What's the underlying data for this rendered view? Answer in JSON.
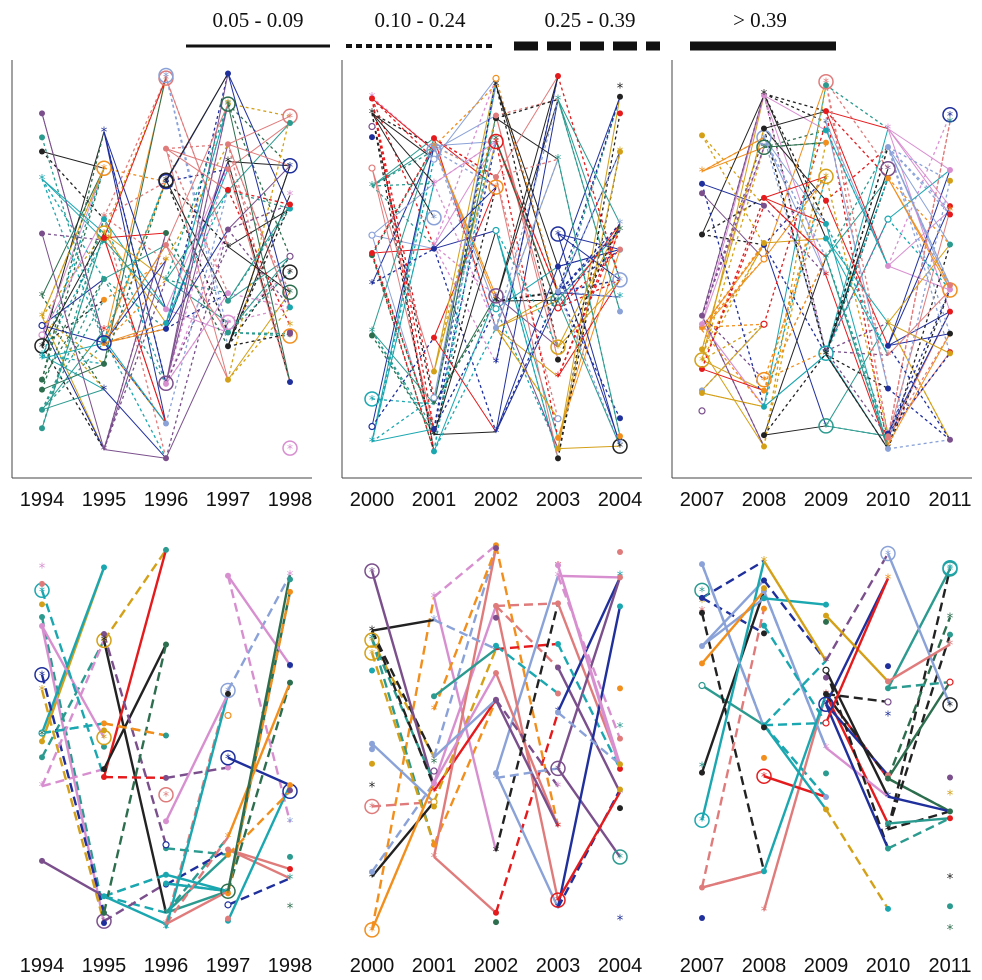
{
  "legend": {
    "items": [
      {
        "label": "0.05 - 0.09",
        "style": "solid-thin"
      },
      {
        "label": "0.10 - 0.24",
        "style": "dotted"
      },
      {
        "label": "0.25 - 0.39",
        "style": "dashed-thick"
      },
      {
        "label": "> 0.39",
        "style": "solid-thick"
      }
    ]
  },
  "chart_data": [
    {
      "type": "network-timeline",
      "row": "top",
      "period": "1994-1998",
      "x": [
        "1994",
        "1995",
        "1996",
        "1997",
        "1998"
      ]
    },
    {
      "type": "network-timeline",
      "row": "top",
      "period": "2000-2004",
      "x": [
        "2000",
        "2001",
        "2002",
        "2003",
        "2004"
      ]
    },
    {
      "type": "network-timeline",
      "row": "top",
      "period": "2007-2011",
      "x": [
        "2007",
        "2008",
        "2009",
        "2010",
        "2011"
      ]
    },
    {
      "type": "network-timeline",
      "row": "bottom",
      "period": "1994-1998",
      "x": [
        "1994",
        "1995",
        "1996",
        "1997",
        "1998"
      ]
    },
    {
      "type": "network-timeline",
      "row": "bottom",
      "period": "2000-2004",
      "x": [
        "2000",
        "2001",
        "2002",
        "2003",
        "2004"
      ]
    },
    {
      "type": "network-timeline",
      "row": "bottom",
      "period": "2007-2011",
      "x": [
        "2007",
        "2008",
        "2009",
        "2010",
        "2011"
      ]
    }
  ],
  "colors": [
    "#e41a1c",
    "#f28e1c",
    "#2d6e4e",
    "#1f2f9c",
    "#1aa7b0",
    "#7a4f8c",
    "#e07b7b",
    "#8aa2d8",
    "#d88fd0",
    "#222222",
    "#2b9a8f",
    "#d4a017"
  ]
}
